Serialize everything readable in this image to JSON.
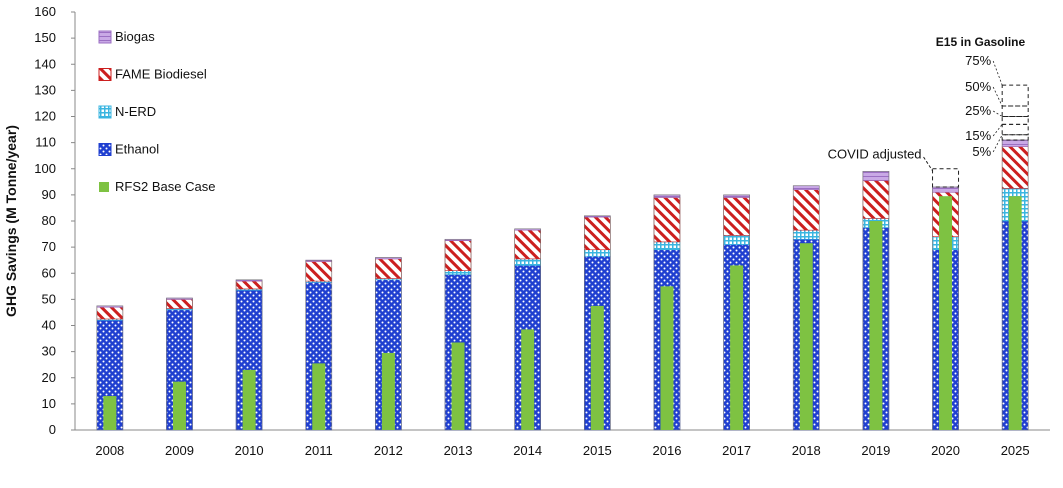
{
  "chart_data": {
    "type": "bar",
    "stacked": true,
    "ylabel": "GHG Savings (M Tonne/year)",
    "ylim": [
      0,
      160
    ],
    "ytick_step": 10,
    "categories": [
      "2008",
      "2009",
      "2010",
      "2011",
      "2012",
      "2013",
      "2014",
      "2015",
      "2016",
      "2017",
      "2018",
      "2019",
      "2020",
      "2025"
    ],
    "series": [
      {
        "name": "Ethanol",
        "color": "#1f3fd0",
        "values": [
          42,
          46,
          53.5,
          56.5,
          57.5,
          59.5,
          63,
          66.5,
          69,
          71,
          73,
          77.5,
          69,
          80
        ]
      },
      {
        "name": "N-ERD",
        "color": "#3ab5e0",
        "values": [
          0.5,
          0.5,
          0.5,
          0.5,
          0.5,
          1.5,
          2.5,
          2.5,
          3,
          3.5,
          3.5,
          3.5,
          5,
          12.5
        ]
      },
      {
        "name": "FAME Biodiesel",
        "color": "#cc1f1f",
        "values": [
          4.5,
          3.5,
          3,
          7.5,
          7.5,
          11.5,
          11,
          12.5,
          17,
          14.5,
          15.5,
          14.5,
          17,
          16
        ]
      },
      {
        "name": "Biogas",
        "color": "#9b6fc3",
        "values": [
          0.5,
          0.5,
          0.5,
          0.5,
          0.5,
          0.5,
          0.5,
          0.5,
          1,
          1,
          1.5,
          3.5,
          2,
          2.5
        ]
      }
    ],
    "base_case": {
      "name": "RFS2 Base Case",
      "color": "#7ec242",
      "values": [
        13,
        18.5,
        23,
        25.5,
        29.5,
        33.5,
        38.5,
        47.5,
        55,
        63,
        71.5,
        80,
        89.5,
        89.5
      ]
    },
    "covid_adjusted": {
      "label": "COVID adjusted",
      "category": "2020",
      "from": 93,
      "to": 100
    },
    "e15": {
      "title": "E15 in Gasoline",
      "category": "2025",
      "levels": [
        {
          "label": "5%",
          "top": 113
        },
        {
          "label": "15%",
          "top": 117
        },
        {
          "label": "25%",
          "top": 120
        },
        {
          "label": "50%",
          "top": 124
        },
        {
          "label": "75%",
          "top": 132
        }
      ]
    },
    "legend_order": [
      "Biogas",
      "FAME Biodiesel",
      "N-ERD",
      "Ethanol",
      "RFS2 Base Case"
    ],
    "legend_position": "top-left",
    "grid": false
  }
}
